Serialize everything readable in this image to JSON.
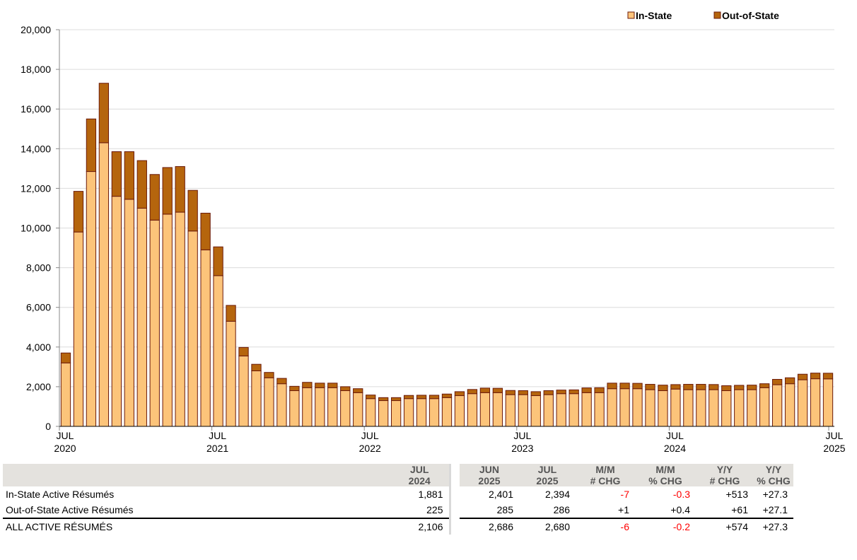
{
  "chart_data": {
    "type": "bar",
    "stacked": true,
    "ylim": [
      0,
      20000
    ],
    "y_ticks": [
      "0",
      "2,000",
      "4,000",
      "6,000",
      "8,000",
      "10,000",
      "12,000",
      "14,000",
      "16,000",
      "18,000",
      "20,000"
    ],
    "x_tick_labels": [
      {
        "month": "JUL",
        "year": "2020"
      },
      {
        "month": "JUL",
        "year": "2021"
      },
      {
        "month": "JUL",
        "year": "2022"
      },
      {
        "month": "JUL",
        "year": "2023"
      },
      {
        "month": "JUL",
        "year": "2024"
      },
      {
        "month": "JUL",
        "year": "2025"
      }
    ],
    "categories": [
      "2020-07",
      "2020-08",
      "2020-09",
      "2020-10",
      "2020-11",
      "2020-12",
      "2021-01",
      "2021-02",
      "2021-03",
      "2021-04",
      "2021-05",
      "2021-06",
      "2021-07",
      "2021-08",
      "2021-09",
      "2021-10",
      "2021-11",
      "2021-12",
      "2022-01",
      "2022-02",
      "2022-03",
      "2022-04",
      "2022-05",
      "2022-06",
      "2022-07",
      "2022-08",
      "2022-09",
      "2022-10",
      "2022-11",
      "2022-12",
      "2023-01",
      "2023-02",
      "2023-03",
      "2023-04",
      "2023-05",
      "2023-06",
      "2023-07",
      "2023-08",
      "2023-09",
      "2023-10",
      "2023-11",
      "2023-12",
      "2024-01",
      "2024-02",
      "2024-03",
      "2024-04",
      "2024-05",
      "2024-06",
      "2024-07",
      "2024-08",
      "2024-09",
      "2024-10",
      "2024-11",
      "2024-12",
      "2025-01",
      "2025-02",
      "2025-03",
      "2025-04",
      "2025-05",
      "2025-06",
      "2025-07"
    ],
    "series": [
      {
        "name": "In-State",
        "color": "#fcc47a",
        "values": [
          3200,
          9800,
          12850,
          14300,
          11600,
          11450,
          11000,
          10400,
          10700,
          10800,
          9850,
          8900,
          7600,
          5300,
          3550,
          2800,
          2450,
          2150,
          1800,
          1950,
          1950,
          1950,
          1800,
          1700,
          1400,
          1300,
          1300,
          1400,
          1400,
          1400,
          1450,
          1550,
          1650,
          1700,
          1700,
          1600,
          1600,
          1550,
          1600,
          1650,
          1650,
          1700,
          1700,
          1900,
          1900,
          1900,
          1850,
          1800,
          1881,
          1850,
          1850,
          1850,
          1800,
          1850,
          1850,
          1950,
          2100,
          2150,
          2350,
          2401,
          2394
        ]
      },
      {
        "name": "Out-of-State",
        "color": "#b5650d",
        "values": [
          500,
          2050,
          2650,
          3000,
          2250,
          2400,
          2400,
          2300,
          2350,
          2300,
          2050,
          1850,
          1450,
          800,
          430,
          330,
          270,
          270,
          220,
          270,
          230,
          230,
          200,
          200,
          180,
          150,
          150,
          160,
          170,
          170,
          180,
          200,
          210,
          230,
          220,
          210,
          200,
          200,
          200,
          180,
          190,
          240,
          250,
          280,
          280,
          270,
          270,
          280,
          225,
          270,
          270,
          260,
          250,
          220,
          230,
          200,
          270,
          300,
          280,
          285,
          286
        ]
      }
    ],
    "legend_position": "top-right"
  },
  "table": {
    "headers": [
      {
        "l1": "",
        "l2": ""
      },
      {
        "l1": "JUL",
        "l2": "2024"
      },
      {
        "l1": "JUN",
        "l2": "2025"
      },
      {
        "l1": "JUL",
        "l2": "2025"
      },
      {
        "l1": "M/M",
        "l2": "# CHG"
      },
      {
        "l1": "M/M",
        "l2": "% CHG"
      },
      {
        "l1": "Y/Y",
        "l2": "# CHG"
      },
      {
        "l1": "Y/Y",
        "l2": "% CHG"
      }
    ],
    "rows": [
      {
        "label": "In-State Active Résumés",
        "jul2024": "1,881",
        "jun2025": "2,401",
        "jul2025": "2,394",
        "mm_num": "-7",
        "mm_pct": "-0.3",
        "yy_num": "+513",
        "yy_pct": "+27.3"
      },
      {
        "label": "Out-of-State Active Résumés",
        "jul2024": "225",
        "jun2025": "285",
        "jul2025": "286",
        "mm_num": "+1",
        "mm_pct": "+0.4",
        "yy_num": "+61",
        "yy_pct": "+27.1"
      },
      {
        "label": "ALL ACTIVE RÉSUMÉS",
        "jul2024": "2,106",
        "jun2025": "2,686",
        "jul2025": "2,680",
        "mm_num": "-6",
        "mm_pct": "-0.2",
        "yy_num": "+574",
        "yy_pct": "+27.3"
      }
    ]
  }
}
